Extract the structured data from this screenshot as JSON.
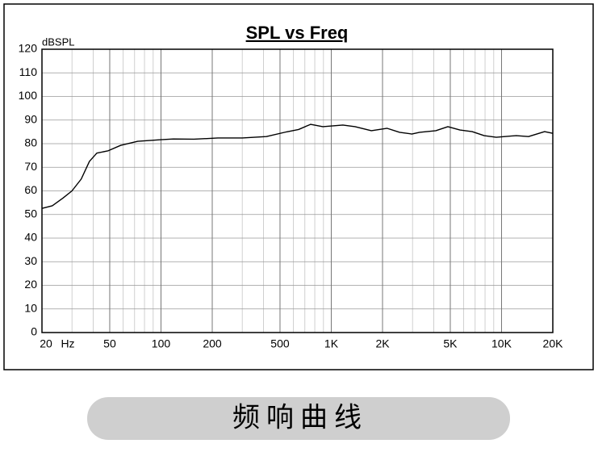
{
  "chart_data": {
    "type": "line",
    "title": "SPL vs Freq",
    "y_label": "dBSPL",
    "x_label": "Hz",
    "x": [
      20,
      23,
      26.6,
      30,
      34,
      38,
      42,
      49,
      58,
      73,
      100,
      118,
      156,
      216,
      300,
      416,
      546,
      643,
      757,
      892,
      1170,
      1380,
      1720,
      2130,
      2520,
      2970,
      3300,
      4110,
      4840,
      5700,
      6720,
      7910,
      9310,
      12200,
      14400,
      17900,
      20000
    ],
    "values": [
      52.6,
      53.7,
      57,
      60,
      65,
      72.5,
      76,
      77,
      79.3,
      81,
      81.7,
      82,
      81.9,
      82.4,
      82.4,
      83,
      85,
      86,
      88.2,
      87.2,
      87.9,
      87.2,
      85.5,
      86.5,
      84.8,
      84.1,
      84.8,
      85.5,
      87.2,
      85.8,
      85.1,
      83.4,
      82.7,
      83.4,
      83,
      85.1,
      84.4
    ],
    "color": "#000000",
    "xscale": "log",
    "xlim": [
      20,
      20000
    ],
    "xticks": [
      20,
      50,
      100,
      200,
      500,
      {
        "value": 1000,
        "label": "1K"
      },
      {
        "value": 2000,
        "label": "2K"
      },
      {
        "value": 5000,
        "label": "5K"
      },
      {
        "value": 10000,
        "label": "10K"
      },
      {
        "value": 20000,
        "label": "20K"
      }
    ],
    "ylim": [
      0,
      120
    ],
    "yticks": [
      0,
      10,
      20,
      30,
      40,
      50,
      60,
      70,
      80,
      90,
      100,
      110,
      120
    ],
    "grid": true
  },
  "caption": "频响曲线"
}
